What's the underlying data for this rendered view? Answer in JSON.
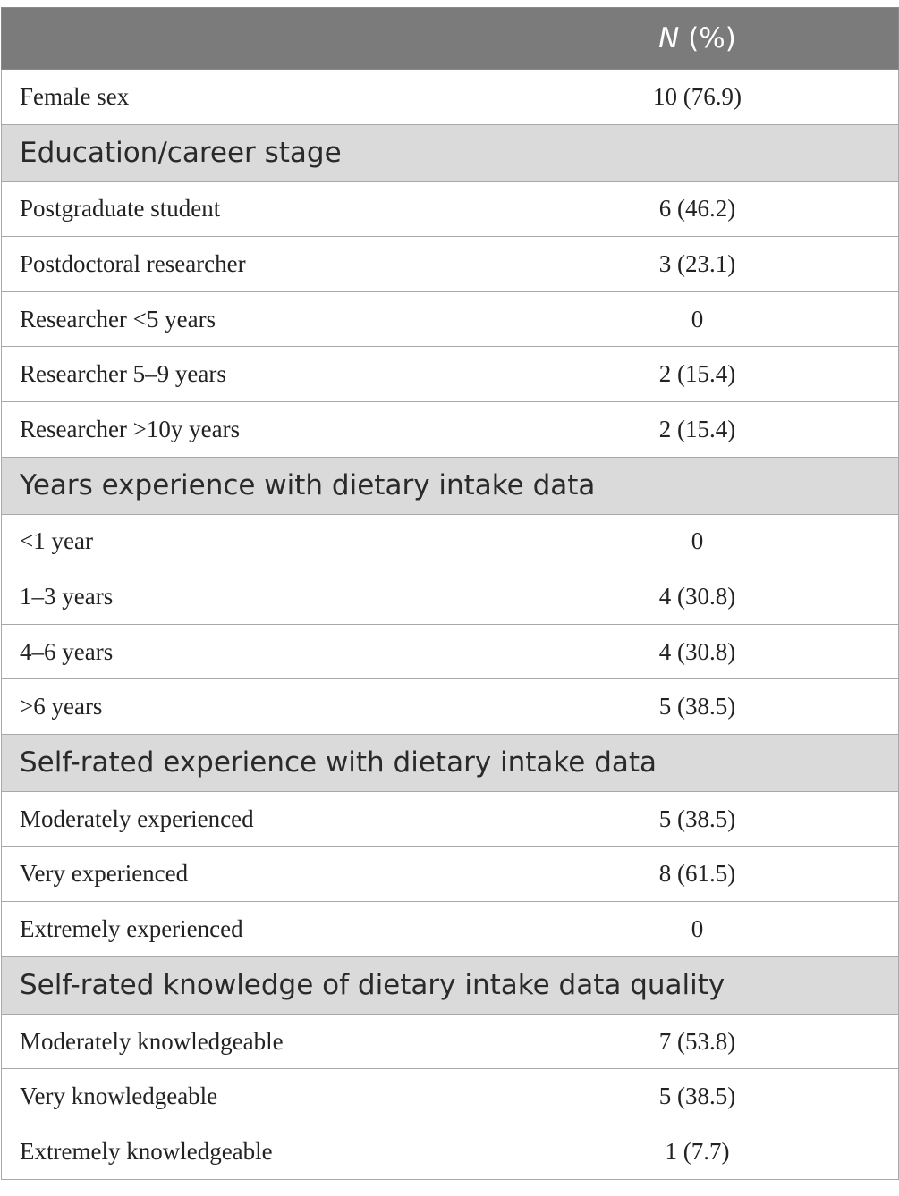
{
  "table": {
    "header": {
      "label_column": "",
      "value_n": "N",
      "value_pct": " (%)"
    },
    "rows": [
      {
        "label": "Female sex",
        "value": "10 (76.9)"
      }
    ],
    "sections": [
      {
        "title": "Education/career stage",
        "rows": [
          {
            "label": "Postgraduate student",
            "value": "6 (46.2)"
          },
          {
            "label": "Postdoctoral researcher",
            "value": "3 (23.1)"
          },
          {
            "label": "Researcher <5 years",
            "value": "0"
          },
          {
            "label": "Researcher 5–9 years",
            "value": "2 (15.4)"
          },
          {
            "label": "Researcher >10y years",
            "value": "2 (15.4)"
          }
        ]
      },
      {
        "title": "Years experience with dietary intake data",
        "rows": [
          {
            "label": "<1 year",
            "value": "0"
          },
          {
            "label": "1–3 years",
            "value": "4 (30.8)"
          },
          {
            "label": "4–6 years",
            "value": "4 (30.8)"
          },
          {
            "label": ">6 years",
            "value": "5 (38.5)"
          }
        ]
      },
      {
        "title": "Self-rated experience with dietary intake data",
        "rows": [
          {
            "label": "Moderately experienced",
            "value": "5 (38.5)"
          },
          {
            "label": "Very experienced",
            "value": "8 (61.5)"
          },
          {
            "label": "Extremely experienced",
            "value": "0"
          }
        ]
      },
      {
        "title": "Self-rated knowledge of dietary intake data quality",
        "rows": [
          {
            "label": "Moderately knowledgeable",
            "value": "7 (53.8)"
          },
          {
            "label": "Very knowledgeable",
            "value": "5 (38.5)"
          },
          {
            "label": "Extremely knowledgeable",
            "value": "1 (7.7)"
          }
        ]
      }
    ]
  }
}
